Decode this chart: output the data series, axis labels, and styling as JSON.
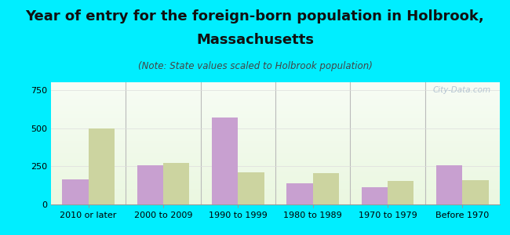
{
  "title_line1": "Year of entry for the foreign-born population in Holbrook,",
  "title_line2": "Massachusetts",
  "subtitle": "(Note: State values scaled to Holbrook population)",
  "categories": [
    "2010 or later",
    "2000 to 2009",
    "1990 to 1999",
    "1980 to 1989",
    "1970 to 1979",
    "Before 1970"
  ],
  "holbrook_values": [
    165,
    255,
    570,
    140,
    115,
    255
  ],
  "massachusetts_values": [
    500,
    270,
    210,
    205,
    155,
    160
  ],
  "holbrook_color": "#c8a0d0",
  "massachusetts_color": "#ccd4a0",
  "background_color": "#00eeff",
  "ylim": [
    0,
    800
  ],
  "yticks": [
    0,
    250,
    500,
    750
  ],
  "bar_width": 0.35,
  "title_fontsize": 13,
  "subtitle_fontsize": 8.5,
  "tick_fontsize": 8,
  "legend_fontsize": 9.5,
  "watermark_text": "City-Data.com",
  "watermark_color": "#aabbcc",
  "divider_color": "#bbbbbb",
  "spine_color": "#999999"
}
